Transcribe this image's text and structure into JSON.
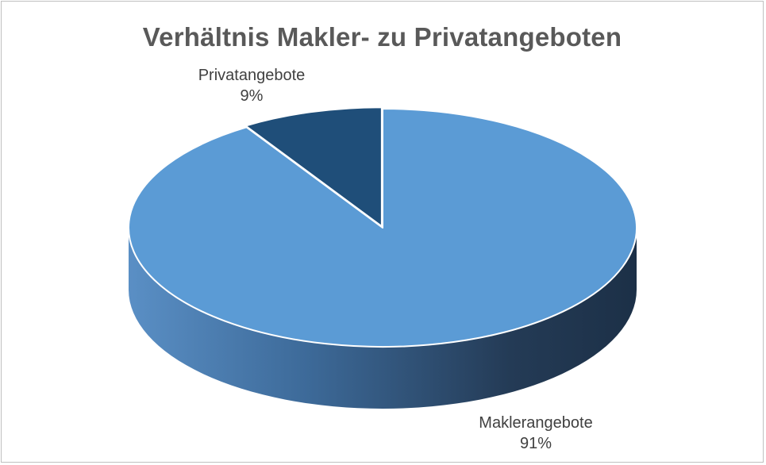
{
  "chart_data": {
    "type": "pie",
    "title": "Verhältnis Makler- zu Privatangeboten",
    "categories": [
      "Privatangebote",
      "Maklerangebote"
    ],
    "values": [
      9,
      91
    ],
    "labels": [
      {
        "name": "Privatangebote",
        "percent": "9%"
      },
      {
        "name": "Maklerangebote",
        "percent": "91%"
      }
    ],
    "colors": {
      "Maklerangebote": "#5b9bd5",
      "Privatangebote": "#1f4e79"
    },
    "style": "3d"
  }
}
